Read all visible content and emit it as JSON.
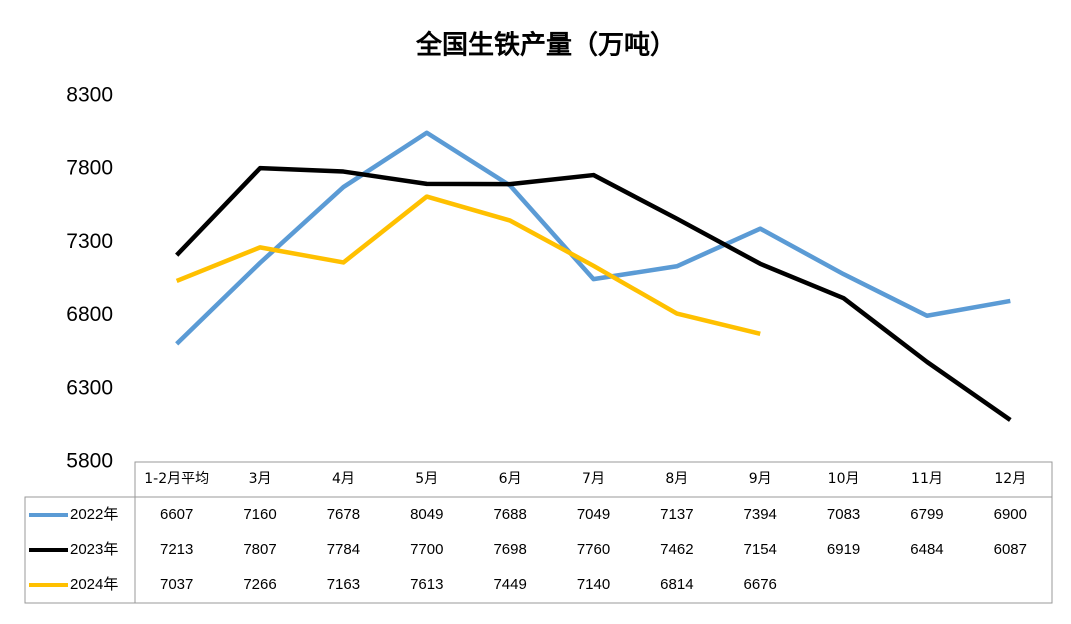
{
  "chart_data": {
    "type": "line",
    "title": "全国生铁产量（万吨）",
    "categories": [
      "1-2月平均",
      "3月",
      "4月",
      "5月",
      "6月",
      "7月",
      "8月",
      "9月",
      "10月",
      "11月",
      "12月"
    ],
    "series": [
      {
        "name": "2022年",
        "color": "#5b9bd5",
        "values": [
          6607,
          7160,
          7678,
          8049,
          7688,
          7049,
          7137,
          7394,
          7083,
          6799,
          6900
        ]
      },
      {
        "name": "2023年",
        "color": "#000000",
        "values": [
          7213,
          7807,
          7784,
          7700,
          7698,
          7760,
          7462,
          7154,
          6919,
          6484,
          6087
        ]
      },
      {
        "name": "2024年",
        "color": "#ffc000",
        "values": [
          7037,
          7266,
          7163,
          7613,
          7449,
          7140,
          6814,
          6676,
          null,
          null,
          null
        ]
      }
    ],
    "ylim": [
      5800,
      8300
    ],
    "yticks": [
      5800,
      6300,
      6800,
      7300,
      7800,
      8300
    ]
  }
}
